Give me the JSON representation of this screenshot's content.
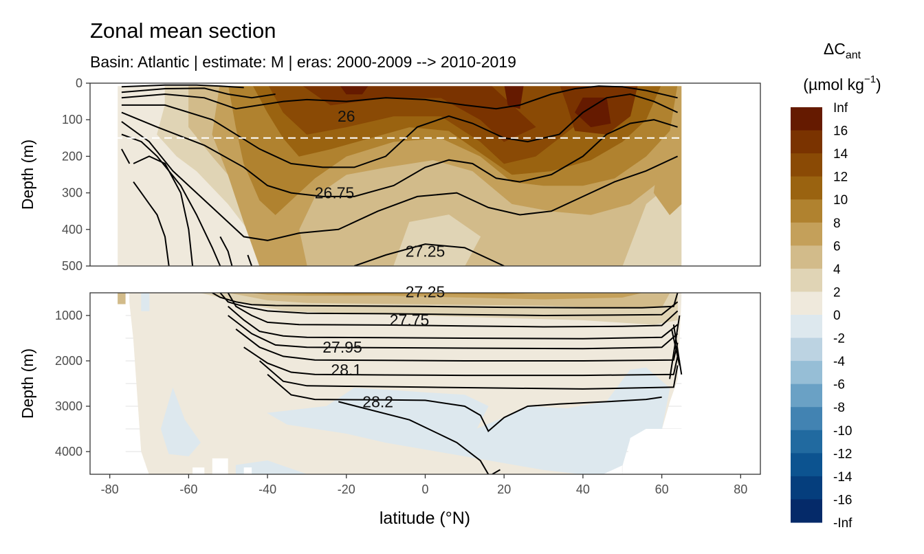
{
  "title": "Zonal mean section",
  "subtitle": "Basin: Atlantic | estimate: M  | eras: 2000-2009 --> 2010-2019",
  "chart_data": {
    "type": "heatmap",
    "title": "Zonal mean section",
    "subtitle": "Basin: Atlantic | estimate: M  | eras: 2000-2009 --> 2010-2019",
    "xlabel": "latitude (°N)",
    "xlim": [
      -85,
      85
    ],
    "xticks": [
      -80,
      -60,
      -40,
      -20,
      0,
      20,
      40,
      60,
      80
    ],
    "data_lat_range": [
      -78,
      65
    ],
    "grid": true,
    "legend_position": "right",
    "legend": {
      "title_main": "ΔC",
      "title_sub": "ant",
      "units_pre": "(µmol kg",
      "units_sup": "−1",
      "units_post": ")",
      "labels": [
        "Inf",
        "16",
        "14",
        "12",
        "10",
        "8",
        "6",
        "4",
        "2",
        "0",
        "-2",
        "-4",
        "-6",
        "-8",
        "-10",
        "-12",
        "-14",
        "-16",
        "-Inf"
      ],
      "colors": [
        "#651a00",
        "#7a3300",
        "#8a4a05",
        "#9a6310",
        "#b0822f",
        "#c4a05a",
        "#d2bb8a",
        "#e0d4b5",
        "#efe9dc",
        "#dde8ee",
        "#bcd3e2",
        "#96bed6",
        "#6aa1c5",
        "#4283b2",
        "#216aa0",
        "#0c5390",
        "#053e7d",
        "#052a69",
        "#06185a"
      ]
    },
    "panels": [
      {
        "name": "upper",
        "ylabel": "Depth (m)",
        "ylim": [
          0,
          500
        ],
        "yticks": [
          0,
          100,
          200,
          300,
          400,
          500
        ],
        "reference_depth": 150,
        "isopycnal_labels": [
          {
            "text": "26",
            "lat": -20,
            "depth": 90
          },
          {
            "text": "26.75",
            "lat": -23,
            "depth": 300
          },
          {
            "text": "27.25",
            "lat": 0,
            "depth": 460
          }
        ]
      },
      {
        "name": "lower",
        "ylabel": "Depth (m)",
        "ylim": [
          500,
          4500
        ],
        "yticks": [
          1000,
          2000,
          3000,
          4000
        ],
        "isopycnal_labels": [
          {
            "text": "27.25",
            "lat": 0,
            "depth": 480
          },
          {
            "text": "27.75",
            "lat": -4,
            "depth": 1100
          },
          {
            "text": "27.95",
            "lat": -21,
            "depth": 1700
          },
          {
            "text": "28.1",
            "lat": -20,
            "depth": 2200
          },
          {
            "text": "28.2",
            "lat": -12,
            "depth": 2900
          }
        ]
      }
    ]
  }
}
